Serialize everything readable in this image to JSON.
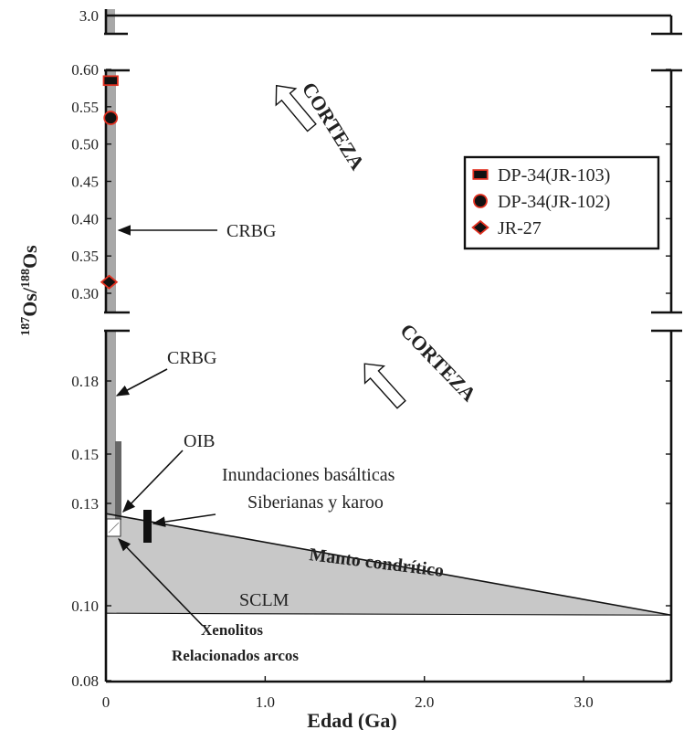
{
  "chart_data": {
    "type": "scatter",
    "xlabel": "Edad (Ga)",
    "ylabel": {
      "base": "Os",
      "sup1": "187",
      "sep": "/",
      "sup2": "188"
    },
    "xlim": [
      0,
      3.55
    ],
    "x_ticks": [
      "0",
      "1.0",
      "2.0",
      "3.0"
    ],
    "y_panels": [
      {
        "name": "top",
        "ylim": [
          2.9,
          3.1
        ],
        "ticks": [
          {
            "value": 3.0,
            "label": "3.0"
          }
        ]
      },
      {
        "name": "middle",
        "ylim": [
          0.27,
          0.605
        ],
        "ticks": [
          {
            "value": 0.6,
            "label": "0.60"
          },
          {
            "value": 0.55,
            "label": "0.55"
          },
          {
            "value": 0.5,
            "label": "0.50"
          },
          {
            "value": 0.45,
            "label": "0.45"
          },
          {
            "value": 0.4,
            "label": "0.40"
          },
          {
            "value": 0.35,
            "label": "0.35"
          },
          {
            "value": 0.3,
            "label": "0.30"
          }
        ]
      },
      {
        "name": "bottom",
        "ylim": [
          0.08,
          0.203
        ],
        "ticks": [
          {
            "value": 0.18,
            "label": "0.18"
          },
          {
            "value": 0.15,
            "label": "0.15"
          },
          {
            "value": 0.13,
            "label": "0.13"
          },
          {
            "value": 0.1,
            "label": "0.10"
          },
          {
            "value": 0.08,
            "label": "0.08"
          }
        ]
      }
    ],
    "series": [
      {
        "name": "DP-34(JR-103)",
        "marker": "square",
        "x": 0.03,
        "y": 0.585
      },
      {
        "name": "DP-34(JR-102)",
        "marker": "circle",
        "x": 0.03,
        "y": 0.535
      },
      {
        "name": "JR-27",
        "marker": "diamond",
        "x": 0.02,
        "y": 0.315
      }
    ],
    "legend": "right",
    "chondritic_mantle": {
      "x": [
        0,
        3.55
      ],
      "y": [
        0.127,
        0.0975
      ]
    },
    "sclm_floor": 0.098,
    "annotations": {
      "crbg_top": "CRBG",
      "crbg_bottom": "CRBG",
      "oib": "OIB",
      "flood1": "Inundaciones basálticas",
      "flood2": "Siberianas y karoo",
      "mantle": "Manto condrítico",
      "sclm": "SCLM",
      "xeno1": "Xenolitos",
      "xeno2": "Relacionados arcos",
      "crust_top": "CORTEZA",
      "crust_bottom": "CORTEZA"
    },
    "colors": {
      "marker_fill": "#111111",
      "marker_edge": "#e03020",
      "grey_band": "#a8a8a8",
      "sclm_fill": "#c8c8c8",
      "dark_bar": "#111111"
    },
    "grid": false
  }
}
